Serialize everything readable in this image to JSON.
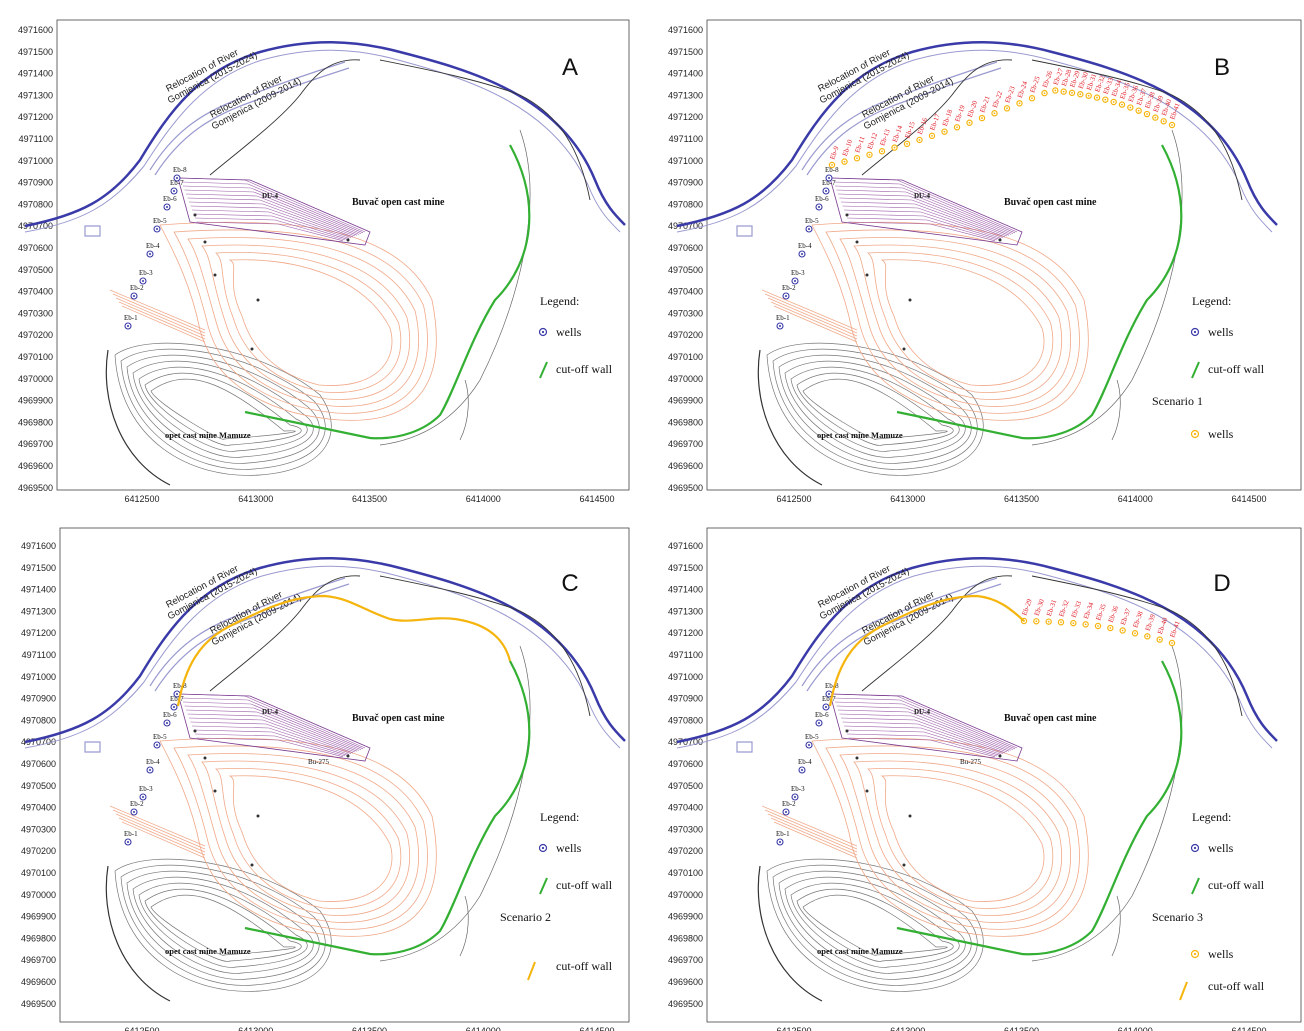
{
  "y_ticks": [
    "4971600",
    "4971500",
    "4971400",
    "4971300",
    "4971200",
    "4971100",
    "4971000",
    "4970900",
    "4970800",
    "4970700",
    "4970600",
    "4970500",
    "4970400",
    "4970300",
    "4970200",
    "4970100",
    "4970000",
    "4969900",
    "4969800",
    "4969700",
    "4969600",
    "4969500"
  ],
  "x_ticks": [
    "6412500",
    "6413000",
    "6413500",
    "6414000",
    "6414500"
  ],
  "map_text": {
    "river_new_1": "Relocation of River",
    "river_new_2": "Gomjenica (2015-2024)",
    "river_old_1": "Relocation of River",
    "river_old_2": "Gomjenica (2009-2014)",
    "mine": "Buvač open cast mine",
    "mamuze": "opet cast mine Mamuze",
    "du4": "DU-4",
    "bu275": "Bu-275",
    "legend_title": "Legend:",
    "legend_wells": "wells",
    "legend_wall": "cut-off wall",
    "wells": "wells",
    "cutoff": "cut-off wall"
  },
  "panels": [
    {
      "letter": "A",
      "scenario": ""
    },
    {
      "letter": "B",
      "scenario": "Scenario 1"
    },
    {
      "letter": "C",
      "scenario": "Scenario 2"
    },
    {
      "letter": "D",
      "scenario": "Scenario 3"
    }
  ],
  "existing_wells": [
    "Eb-1",
    "Eb-2",
    "Eb-3",
    "Eb-4",
    "Eb-5",
    "Eb-6",
    "Eb-7",
    "Eb-8"
  ],
  "scenario1_wells": [
    "Eb-9",
    "Eb-10",
    "Eb-11",
    "Eb-12",
    "Eb-13",
    "Eb-14",
    "Eb-15",
    "Eb-16",
    "Eb-17",
    "Eb-18",
    "Eb-19",
    "Eb-20",
    "Eb-21",
    "Eb-22",
    "Eb-23",
    "Eb-24",
    "Eb-25",
    "Eb-26",
    "Eb-27",
    "Eb-28",
    "Eb-29",
    "Eb-30",
    "Eb-31",
    "Eb-32",
    "Eb-33",
    "Eb-34",
    "Eb-35",
    "Eb-36",
    "Eb-37",
    "Eb-38",
    "Eb-39",
    "Eb-40",
    "Eb-41"
  ],
  "scenario3_wells": [
    "Eb-29",
    "Eb-30",
    "Eb-31",
    "Eb-32",
    "Eb-33",
    "Eb-34",
    "Eb-35",
    "Eb-36",
    "Eb-37",
    "Eb-38",
    "Eb-39",
    "Eb-40",
    "Eb-41"
  ],
  "colors": {
    "river_new": "#3a3aa8",
    "river_old": "#9a9ad0",
    "pit": "#f0a888",
    "dump": "#9a5aa8",
    "cutoff": "#33b033",
    "scenario_wall": "#f5b50e",
    "scenario_well": "#f5b50e",
    "well_label": "#e0202a",
    "mamuze": "#777777"
  }
}
